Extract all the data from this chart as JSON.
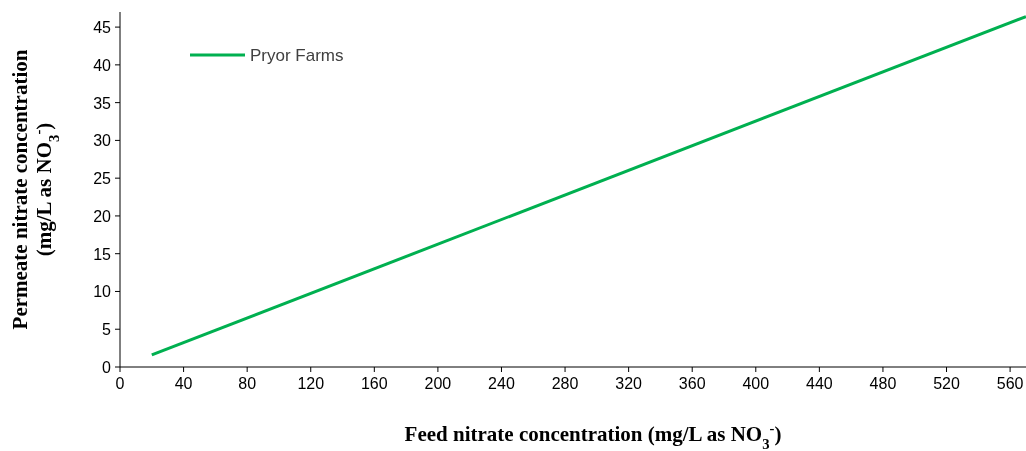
{
  "chart_data": {
    "type": "line",
    "xlabel": "Feed nitrate concentration (mg/L as NO$_{3}$$^{-}$)",
    "ylabel": "Permeate nitrate concentration\n(mg/L as NO$_{3}$$^{-}$)",
    "series": [
      {
        "name": "Pryor Farms",
        "color": "#00b050",
        "x": [
          20,
          570
        ],
        "values": [
          1.6,
          46.4
        ]
      }
    ],
    "xlim": [
      0,
      570
    ],
    "xticks": [
      0,
      40,
      80,
      120,
      160,
      200,
      240,
      280,
      320,
      360,
      400,
      440,
      480,
      520,
      560
    ],
    "ylim": [
      0,
      47
    ],
    "yticks": [
      0,
      5,
      10,
      15,
      20,
      25,
      30,
      35,
      40,
      45
    ],
    "legend": "top left",
    "grid": false,
    "marker": "none",
    "line_style": "solid"
  }
}
